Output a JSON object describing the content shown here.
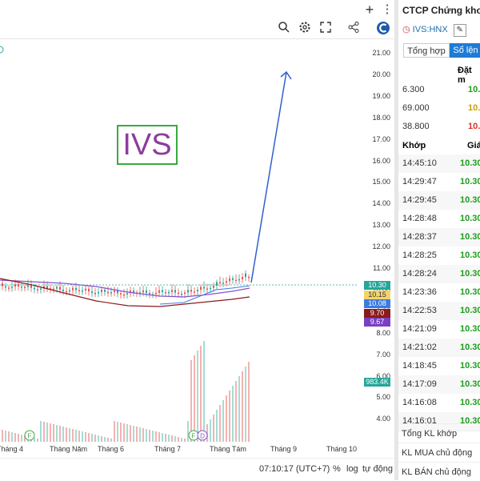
{
  "chart_header": {
    "plus_icon": "+",
    "more_icon": "⋮"
  },
  "chart_toolbar": {
    "icons": [
      "magnifier-icon",
      "gear-icon",
      "fullscreen-icon",
      "share-icon",
      "logo-icon"
    ]
  },
  "annotation": {
    "text": "IVS",
    "text_color": "#8e3b9e",
    "border_color": "#3aa845"
  },
  "price_axis": {
    "labels": [
      "21.00",
      "20.00",
      "19.00",
      "18.00",
      "17.00",
      "16.00",
      "15.00",
      "14.00",
      "13.00",
      "12.00",
      "11.00",
      "10.00",
      "9.00",
      "8.00",
      "7.00",
      "6.00",
      "5.00",
      "4.00"
    ],
    "tags": [
      {
        "text": "10.30",
        "color": "#26a69a"
      },
      {
        "text": "10.15",
        "color": "#f5d36b",
        "text_color": "#333"
      },
      {
        "text": "10.08",
        "color": "#3d7be0"
      },
      {
        "text": "9.70",
        "color": "#8b1a1a"
      },
      {
        "text": "9.67",
        "color": "#7b3fc4"
      },
      {
        "text": "983.4K",
        "color": "#26a69a"
      }
    ]
  },
  "time_axis": {
    "labels": [
      "Tháng 4",
      "Tháng Năm",
      "Tháng 6",
      "Tháng 7",
      "Tháng Tám",
      "Tháng 9",
      "Tháng 10"
    ],
    "markers": [
      "F",
      "F",
      "D"
    ]
  },
  "status_bar": {
    "time": "07:10:17 (UTC+7)",
    "percent": "%",
    "log": "log",
    "auto": "tự động"
  },
  "right_panel": {
    "title": "CTCP Chứng khoá",
    "symbol": "IVS:HNX",
    "tabs": [
      "Tổng hợp",
      "Sổ lện"
    ],
    "book_header": "Đặt m",
    "book_rows": [
      {
        "qty": "6.300",
        "price": "10.",
        "color": "#1a9e1a"
      },
      {
        "qty": "69.000",
        "price": "10.",
        "color": "#c9a000"
      },
      {
        "qty": "38.800",
        "price": "10.",
        "color": "#d9342b"
      }
    ],
    "trades_header": {
      "time": "Khớp",
      "price": "Giá"
    },
    "trades": [
      {
        "time": "14:45:10",
        "price": "10.30"
      },
      {
        "time": "14:29:47",
        "price": "10.30"
      },
      {
        "time": "14:29:45",
        "price": "10.30"
      },
      {
        "time": "14:28:48",
        "price": "10.30"
      },
      {
        "time": "14:28:37",
        "price": "10.30"
      },
      {
        "time": "14:28:25",
        "price": "10.30"
      },
      {
        "time": "14:28:24",
        "price": "10.30"
      },
      {
        "time": "14:23:36",
        "price": "10.30"
      },
      {
        "time": "14:22:53",
        "price": "10.30"
      },
      {
        "time": "14:21:09",
        "price": "10.30"
      },
      {
        "time": "14:21:02",
        "price": "10.30"
      },
      {
        "time": "14:18:45",
        "price": "10.30"
      },
      {
        "time": "14:17:09",
        "price": "10.30"
      },
      {
        "time": "14:16:08",
        "price": "10.30"
      },
      {
        "time": "14:16:01",
        "price": "10.30"
      }
    ],
    "summary": [
      "Tổng KL khớp",
      "KL MUA chủ động",
      "KL BÁN chủ động"
    ]
  }
}
